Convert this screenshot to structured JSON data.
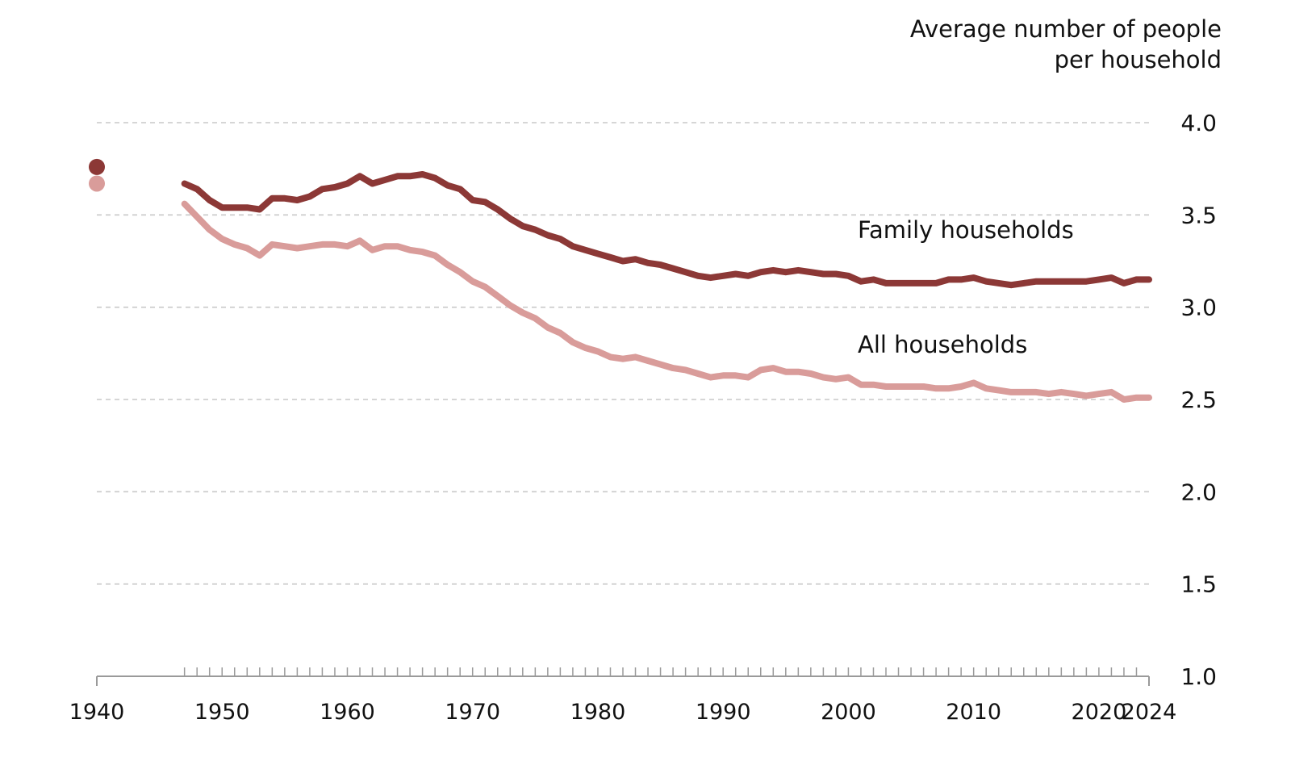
{
  "chart_data": {
    "type": "line",
    "ylabel_lines": [
      "Average number of people",
      "per household"
    ],
    "xlim": [
      1940,
      2024
    ],
    "ylim": [
      1.0,
      4.0
    ],
    "y_ticks": [
      "1.0",
      "1.5",
      "2.0",
      "2.5",
      "3.0",
      "3.5",
      "4.0"
    ],
    "x_ticks": [
      "1940",
      "1950",
      "1960",
      "1970",
      "1980",
      "1990",
      "2000",
      "2010",
      "2020",
      "2024"
    ],
    "grid": true,
    "series": [
      {
        "name": "Family households",
        "color": "#8c3836",
        "point_1940": 3.76,
        "x": [
          1947,
          1948,
          1949,
          1950,
          1951,
          1952,
          1953,
          1954,
          1955,
          1956,
          1957,
          1958,
          1959,
          1960,
          1961,
          1962,
          1963,
          1964,
          1965,
          1966,
          1967,
          1968,
          1969,
          1970,
          1971,
          1972,
          1973,
          1974,
          1975,
          1976,
          1977,
          1978,
          1979,
          1980,
          1981,
          1982,
          1983,
          1984,
          1985,
          1986,
          1987,
          1988,
          1989,
          1990,
          1991,
          1992,
          1993,
          1994,
          1995,
          1996,
          1997,
          1998,
          1999,
          2000,
          2001,
          2002,
          2003,
          2004,
          2005,
          2006,
          2007,
          2008,
          2009,
          2010,
          2011,
          2012,
          2013,
          2014,
          2015,
          2016,
          2017,
          2018,
          2019,
          2020,
          2021,
          2022,
          2023,
          2024
        ],
        "y": [
          3.67,
          3.64,
          3.58,
          3.54,
          3.54,
          3.54,
          3.53,
          3.59,
          3.59,
          3.58,
          3.6,
          3.64,
          3.65,
          3.67,
          3.71,
          3.67,
          3.69,
          3.71,
          3.71,
          3.72,
          3.7,
          3.66,
          3.64,
          3.58,
          3.57,
          3.53,
          3.48,
          3.44,
          3.42,
          3.39,
          3.37,
          3.33,
          3.31,
          3.29,
          3.27,
          3.25,
          3.26,
          3.24,
          3.23,
          3.21,
          3.19,
          3.17,
          3.16,
          3.17,
          3.18,
          3.17,
          3.19,
          3.2,
          3.19,
          3.2,
          3.19,
          3.18,
          3.18,
          3.17,
          3.14,
          3.15,
          3.13,
          3.13,
          3.13,
          3.13,
          3.13,
          3.15,
          3.15,
          3.16,
          3.14,
          3.13,
          3.12,
          3.13,
          3.14,
          3.14,
          3.14,
          3.14,
          3.14,
          3.15,
          3.16,
          3.13,
          3.15,
          3.15
        ]
      },
      {
        "name": "All households",
        "color": "#d99c9a",
        "point_1940": 3.67,
        "x": [
          1947,
          1948,
          1949,
          1950,
          1951,
          1952,
          1953,
          1954,
          1955,
          1956,
          1957,
          1958,
          1959,
          1960,
          1961,
          1962,
          1963,
          1964,
          1965,
          1966,
          1967,
          1968,
          1969,
          1970,
          1971,
          1972,
          1973,
          1974,
          1975,
          1976,
          1977,
          1978,
          1979,
          1980,
          1981,
          1982,
          1983,
          1984,
          1985,
          1986,
          1987,
          1988,
          1989,
          1990,
          1991,
          1992,
          1993,
          1994,
          1995,
          1996,
          1997,
          1998,
          1999,
          2000,
          2001,
          2002,
          2003,
          2004,
          2005,
          2006,
          2007,
          2008,
          2009,
          2010,
          2011,
          2012,
          2013,
          2014,
          2015,
          2016,
          2017,
          2018,
          2019,
          2020,
          2021,
          2022,
          2023,
          2024
        ],
        "y": [
          3.56,
          3.49,
          3.42,
          3.37,
          3.34,
          3.32,
          3.28,
          3.34,
          3.33,
          3.32,
          3.33,
          3.34,
          3.34,
          3.33,
          3.36,
          3.31,
          3.33,
          3.33,
          3.31,
          3.3,
          3.28,
          3.23,
          3.19,
          3.14,
          3.11,
          3.06,
          3.01,
          2.97,
          2.94,
          2.89,
          2.86,
          2.81,
          2.78,
          2.76,
          2.73,
          2.72,
          2.73,
          2.71,
          2.69,
          2.67,
          2.66,
          2.64,
          2.62,
          2.63,
          2.63,
          2.62,
          2.66,
          2.67,
          2.65,
          2.65,
          2.64,
          2.62,
          2.61,
          2.62,
          2.58,
          2.58,
          2.57,
          2.57,
          2.57,
          2.57,
          2.56,
          2.56,
          2.57,
          2.59,
          2.56,
          2.55,
          2.54,
          2.54,
          2.54,
          2.53,
          2.54,
          2.53,
          2.52,
          2.53,
          2.54,
          2.5,
          2.51,
          2.51
        ]
      }
    ]
  }
}
